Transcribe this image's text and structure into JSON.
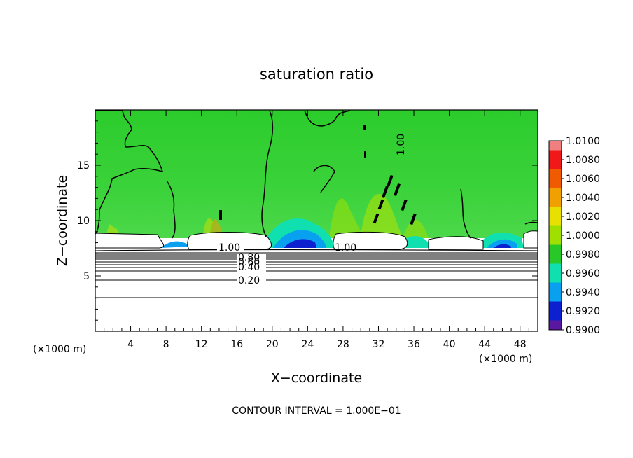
{
  "chart_data": {
    "type": "heatmap",
    "title": "saturation ratio",
    "xlabel": "X−coordinate",
    "ylabel": "Z−coordinate",
    "x_unit": "(×1000 m)",
    "z_unit": "(×1000 m)",
    "xlim": [
      0,
      50
    ],
    "ylim": [
      0,
      20
    ],
    "x_ticks": [
      "4",
      "8",
      "12",
      "16",
      "20",
      "24",
      "28",
      "32",
      "36",
      "40",
      "44",
      "48"
    ],
    "y_ticks": [
      "5",
      "10",
      "15"
    ],
    "colorbar": {
      "min": 0.99,
      "max": 1.01,
      "labels": [
        "1.0100",
        "1.0080",
        "1.0060",
        "1.0040",
        "1.0020",
        "1.0000",
        "0.9980",
        "0.9960",
        "0.9940",
        "0.9920",
        "0.9900"
      ],
      "colors": [
        "#f08080",
        "#f01818",
        "#f05a00",
        "#f0a000",
        "#e8e000",
        "#a0e000",
        "#28c828",
        "#10e0b0",
        "#0aa0f0",
        "#0c20d0",
        "#5a18a0"
      ]
    },
    "contour_labels": [
      "1.00",
      "1.00",
      "0.80",
      "0.60",
      "0.40",
      "0.20",
      "1.00"
    ],
    "footnote": "CONTOUR INTERVAL = 1.000E−01"
  }
}
